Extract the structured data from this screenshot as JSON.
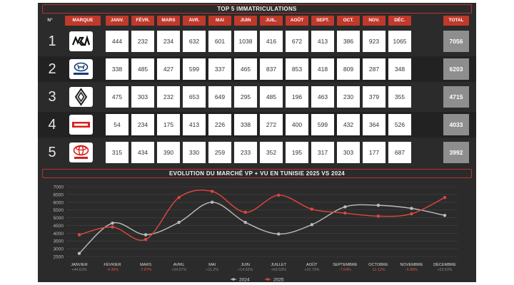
{
  "table": {
    "title": "TOP 5 IMMATRICULATIONS",
    "headers": [
      "N°",
      "MARQUE",
      "JANV.",
      "FÉVR.",
      "MARS",
      "AVR.",
      "MAI",
      "JUIN",
      "JUIL.",
      "AOÛT",
      "SEPT.",
      "OCT.",
      "NOV.",
      "DÉC.",
      "TOTAL"
    ],
    "rows": [
      {
        "rank": "1",
        "brand": "Kia",
        "logo_icon": "kia-logo-icon",
        "values": [
          "444",
          "232",
          "234",
          "632",
          "601",
          "1038",
          "416",
          "672",
          "413",
          "386",
          "923",
          "1065"
        ],
        "total": "7056"
      },
      {
        "rank": "2",
        "brand": "Hyundai",
        "logo_icon": "hyundai-logo-icon",
        "values": [
          "338",
          "485",
          "427",
          "599",
          "337",
          "465",
          "837",
          "853",
          "418",
          "809",
          "287",
          "348"
        ],
        "total": "6203"
      },
      {
        "rank": "3",
        "brand": "Renault",
        "logo_icon": "renault-logo-icon",
        "values": [
          "475",
          "303",
          "232",
          "653",
          "649",
          "295",
          "485",
          "196",
          "463",
          "230",
          "379",
          "355"
        ],
        "total": "4715"
      },
      {
        "rank": "4",
        "brand": "Isuzu",
        "logo_icon": "isuzu-logo-icon",
        "values": [
          "54",
          "234",
          "175",
          "413",
          "226",
          "338",
          "272",
          "400",
          "599",
          "432",
          "364",
          "526"
        ],
        "total": "4033"
      },
      {
        "rank": "5",
        "brand": "Toyota",
        "logo_icon": "toyota-logo-icon",
        "values": [
          "315",
          "434",
          "390",
          "330",
          "259",
          "233",
          "352",
          "195",
          "317",
          "303",
          "177",
          "687"
        ],
        "total": "3992"
      }
    ]
  },
  "chart_data": {
    "type": "line",
    "title": "EVOLUTION DU MARCHÉ VP + VU EN TUNISIE 2025 VS 2024",
    "categories": [
      "JANVIER",
      "FÉVRIER",
      "MARS",
      "AVRIL",
      "MAI",
      "JUIN",
      "JUILLET",
      "AOÛT",
      "SEPTEMBRE",
      "OCTOBRE",
      "NOVEMBRE",
      "DÉCEMBRE"
    ],
    "changes": [
      "+44.63%",
      "-4.35%",
      "-7.87%",
      "+34.57%",
      "+11.2%",
      "+14.02%",
      "+63.53%",
      "+22.73%",
      "-7.04%",
      "-11.12%",
      "-5.98%",
      "+22.63%"
    ],
    "change_colors": [
      "#888888",
      "#d9534f",
      "#d9534f",
      "#888888",
      "#888888",
      "#888888",
      "#888888",
      "#888888",
      "#d9534f",
      "#d9534f",
      "#d9534f",
      "#888888"
    ],
    "series": [
      {
        "name": "2024",
        "color": "#bdbdbd",
        "values": [
          2700,
          4650,
          3900,
          4700,
          6000,
          4700,
          3950,
          4550,
          5700,
          5800,
          5600,
          5150
        ]
      },
      {
        "name": "2025",
        "color": "#e0463d",
        "values": [
          3900,
          4400,
          3600,
          6300,
          6700,
          5350,
          6450,
          5550,
          5300,
          5100,
          5250,
          6300
        ]
      }
    ],
    "yticks": [
      2500,
      3000,
      3500,
      4000,
      4500,
      5000,
      5500,
      6000,
      6500,
      7000
    ],
    "ylim": [
      2500,
      7000
    ],
    "grid": true,
    "legend_position": "bottom"
  }
}
